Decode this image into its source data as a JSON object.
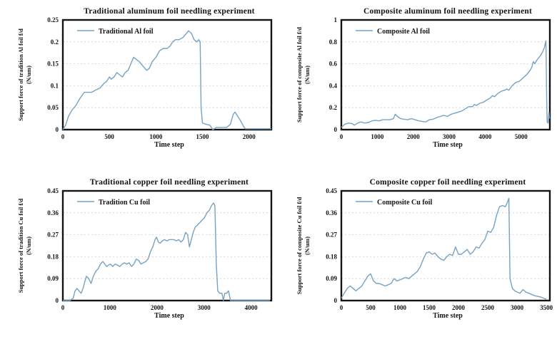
{
  "figure_background": "#ffffff",
  "axis_color": "#141414",
  "grid_color": "#cfcfcf",
  "chart_data": [
    {
      "type": "line",
      "title": "Traditional aluminum foil needling experiment",
      "legend": "Traditional Al foil",
      "xlabel": "Time step",
      "ylabel": "Support force of tradition Al foil f/d",
      "ylabel_unit": "(N/um)",
      "line_color": "#76a2c4",
      "xlim": [
        0,
        2240
      ],
      "ylim": [
        0,
        0.25
      ],
      "xticks": [
        0,
        500,
        1000,
        1500,
        2000
      ],
      "yticks": [
        0,
        0.05,
        0.1,
        0.15,
        0.2,
        0.25
      ],
      "grid": "horizontal-dotted",
      "legend_position": "top-left",
      "x": [
        0,
        30,
        60,
        100,
        140,
        180,
        230,
        270,
        310,
        350,
        400,
        440,
        470,
        500,
        520,
        550,
        580,
        610,
        640,
        670,
        700,
        730,
        760,
        790,
        820,
        860,
        900,
        930,
        960,
        1000,
        1040,
        1080,
        1120,
        1150,
        1180,
        1210,
        1250,
        1290,
        1330,
        1350,
        1380,
        1410,
        1440,
        1460,
        1475,
        1485,
        1500,
        1540,
        1580,
        1610,
        1650,
        1700,
        1760,
        1800,
        1830,
        1850,
        1880,
        1910,
        1940,
        1960,
        2000,
        2100,
        2200,
        2240
      ],
      "y": [
        0,
        0.01,
        0.03,
        0.045,
        0.055,
        0.07,
        0.085,
        0.085,
        0.085,
        0.09,
        0.095,
        0.105,
        0.11,
        0.12,
        0.115,
        0.12,
        0.13,
        0.125,
        0.12,
        0.13,
        0.135,
        0.15,
        0.165,
        0.16,
        0.155,
        0.145,
        0.135,
        0.14,
        0.155,
        0.165,
        0.18,
        0.185,
        0.185,
        0.19,
        0.2,
        0.205,
        0.205,
        0.21,
        0.22,
        0.225,
        0.22,
        0.205,
        0.2,
        0.205,
        0.2,
        0.05,
        0.015,
        0.012,
        0.01,
        0,
        0.005,
        0.005,
        0.005,
        0.012,
        0.035,
        0.04,
        0.03,
        0.02,
        0.008,
        0.002,
        0.002,
        0.002,
        0.002,
        0.002
      ]
    },
    {
      "type": "line",
      "title": "Composite aluminum foil needling experiment",
      "legend": "Composite Al foil",
      "xlabel": "Time step",
      "ylabel": "Support force of composite Al foil f/d",
      "ylabel_unit": "(N/um)",
      "line_color": "#76a2c4",
      "xlim": [
        0,
        5800
      ],
      "ylim": [
        0,
        1
      ],
      "xticks": [
        0,
        1000,
        2000,
        3000,
        4000,
        5000
      ],
      "yticks": [
        0,
        0.2,
        0.4,
        0.6,
        0.8,
        1
      ],
      "grid": "horizontal-dotted",
      "legend_position": "top-left",
      "x": [
        0,
        100,
        200,
        300,
        360,
        450,
        550,
        650,
        750,
        850,
        950,
        1050,
        1150,
        1250,
        1350,
        1450,
        1500,
        1560,
        1650,
        1750,
        1850,
        1950,
        2050,
        2150,
        2250,
        2350,
        2450,
        2550,
        2650,
        2750,
        2850,
        2950,
        3050,
        3150,
        3250,
        3350,
        3450,
        3550,
        3650,
        3700,
        3760,
        3850,
        3950,
        4050,
        4150,
        4200,
        4260,
        4350,
        4450,
        4550,
        4600,
        4660,
        4750,
        4850,
        4950,
        5050,
        5150,
        5250,
        5300,
        5340,
        5380,
        5430,
        5500,
        5550,
        5600,
        5650,
        5690,
        5710,
        5725,
        5750,
        5775,
        5790
      ],
      "y": [
        0.02,
        0.05,
        0.06,
        0.055,
        0.04,
        0.06,
        0.07,
        0.06,
        0.065,
        0.08,
        0.085,
        0.08,
        0.09,
        0.09,
        0.09,
        0.1,
        0.14,
        0.12,
        0.1,
        0.095,
        0.09,
        0.1,
        0.09,
        0.08,
        0.075,
        0.07,
        0.09,
        0.095,
        0.11,
        0.12,
        0.13,
        0.12,
        0.14,
        0.15,
        0.16,
        0.17,
        0.19,
        0.21,
        0.21,
        0.23,
        0.22,
        0.24,
        0.25,
        0.27,
        0.29,
        0.31,
        0.3,
        0.33,
        0.35,
        0.36,
        0.37,
        0.36,
        0.4,
        0.43,
        0.44,
        0.47,
        0.5,
        0.54,
        0.57,
        0.62,
        0.6,
        0.63,
        0.66,
        0.68,
        0.71,
        0.75,
        0.81,
        0.3,
        0.07,
        0.06,
        0.16,
        0.1
      ]
    },
    {
      "type": "line",
      "title": "Traditional copper foil needling experiment",
      "legend": "Tradition Cu foil",
      "xlabel": "Time step",
      "ylabel": "Support force of tradition Cu foil f/d",
      "ylabel_unit": "(N/um)",
      "line_color": "#76a2c4",
      "xlim": [
        0,
        4430
      ],
      "ylim": [
        0,
        0.45
      ],
      "xticks": [
        0,
        1000,
        2000,
        3000,
        4000
      ],
      "yticks": [
        0,
        0.09,
        0.18,
        0.27,
        0.36,
        0.45
      ],
      "grid": "horizontal-dotted",
      "legend_position": "top-left",
      "x": [
        0,
        150,
        220,
        260,
        300,
        340,
        390,
        430,
        470,
        500,
        550,
        600,
        650,
        700,
        750,
        800,
        850,
        890,
        930,
        970,
        1010,
        1060,
        1110,
        1160,
        1210,
        1260,
        1310,
        1360,
        1410,
        1460,
        1510,
        1560,
        1610,
        1660,
        1710,
        1760,
        1810,
        1860,
        1910,
        1960,
        1990,
        2030,
        2070,
        2110,
        2160,
        2210,
        2260,
        2310,
        2360,
        2410,
        2460,
        2510,
        2560,
        2610,
        2650,
        2690,
        2730,
        2770,
        2810,
        2860,
        2910,
        2960,
        3010,
        3060,
        3110,
        3160,
        3200,
        3230,
        3260,
        3290,
        3330,
        3380,
        3410,
        3440,
        3480,
        3520,
        3560,
        3600,
        3800,
        4000,
        4400
      ],
      "y": [
        0,
        0,
        0.01,
        0.04,
        0.05,
        0.04,
        0.03,
        0.05,
        0.08,
        0.1,
        0.09,
        0.07,
        0.1,
        0.12,
        0.13,
        0.15,
        0.16,
        0.15,
        0.14,
        0.145,
        0.15,
        0.14,
        0.15,
        0.145,
        0.14,
        0.15,
        0.155,
        0.15,
        0.155,
        0.14,
        0.15,
        0.17,
        0.165,
        0.15,
        0.155,
        0.16,
        0.17,
        0.2,
        0.22,
        0.25,
        0.26,
        0.24,
        0.235,
        0.245,
        0.25,
        0.245,
        0.25,
        0.25,
        0.25,
        0.245,
        0.25,
        0.24,
        0.25,
        0.28,
        0.27,
        0.22,
        0.25,
        0.28,
        0.3,
        0.31,
        0.32,
        0.33,
        0.34,
        0.36,
        0.37,
        0.39,
        0.4,
        0.39,
        0.15,
        0.04,
        0.03,
        0.03,
        0,
        0.03,
        0.03,
        0.04,
        0,
        0,
        0,
        0,
        0
      ]
    },
    {
      "type": "line",
      "title": "Composite copper foil needling experiment",
      "legend": "Composite Cu foil",
      "xlabel": "Time step",
      "ylabel": "Support force of composite Cu foil f/d",
      "ylabel_unit": "(N/um)",
      "line_color": "#76a2c4",
      "xlim": [
        0,
        3560
      ],
      "ylim": [
        0,
        0.45
      ],
      "xticks": [
        0,
        500,
        1000,
        1500,
        2000,
        2500,
        3000,
        3500
      ],
      "yticks": [
        0,
        0.09,
        0.18,
        0.27,
        0.36,
        0.45
      ],
      "grid": "horizontal-dotted",
      "legend_position": "top-left",
      "x": [
        0,
        50,
        100,
        150,
        200,
        250,
        300,
        350,
        400,
        450,
        500,
        550,
        600,
        650,
        700,
        750,
        800,
        850,
        900,
        950,
        1000,
        1050,
        1100,
        1150,
        1200,
        1250,
        1300,
        1350,
        1400,
        1450,
        1500,
        1550,
        1600,
        1650,
        1700,
        1750,
        1800,
        1850,
        1900,
        1950,
        2000,
        2050,
        2100,
        2150,
        2200,
        2250,
        2300,
        2350,
        2400,
        2450,
        2500,
        2550,
        2600,
        2650,
        2700,
        2750,
        2800,
        2830,
        2860,
        2880,
        2920,
        2960,
        3000,
        3050,
        3100,
        3150,
        3200,
        3300,
        3400,
        3500
      ],
      "y": [
        0.01,
        0.03,
        0.05,
        0.06,
        0.05,
        0.04,
        0.05,
        0.06,
        0.08,
        0.1,
        0.11,
        0.08,
        0.07,
        0.07,
        0.065,
        0.06,
        0.065,
        0.07,
        0.09,
        0.08,
        0.085,
        0.09,
        0.095,
        0.09,
        0.1,
        0.11,
        0.12,
        0.14,
        0.17,
        0.195,
        0.2,
        0.19,
        0.195,
        0.18,
        0.17,
        0.165,
        0.18,
        0.19,
        0.185,
        0.22,
        0.19,
        0.19,
        0.2,
        0.21,
        0.19,
        0.2,
        0.22,
        0.215,
        0.235,
        0.25,
        0.285,
        0.28,
        0.3,
        0.35,
        0.385,
        0.39,
        0.385,
        0.4,
        0.42,
        0.09,
        0.05,
        0.04,
        0.035,
        0.03,
        0.045,
        0.035,
        0.03,
        0.02,
        0.015,
        0.005
      ]
    }
  ]
}
